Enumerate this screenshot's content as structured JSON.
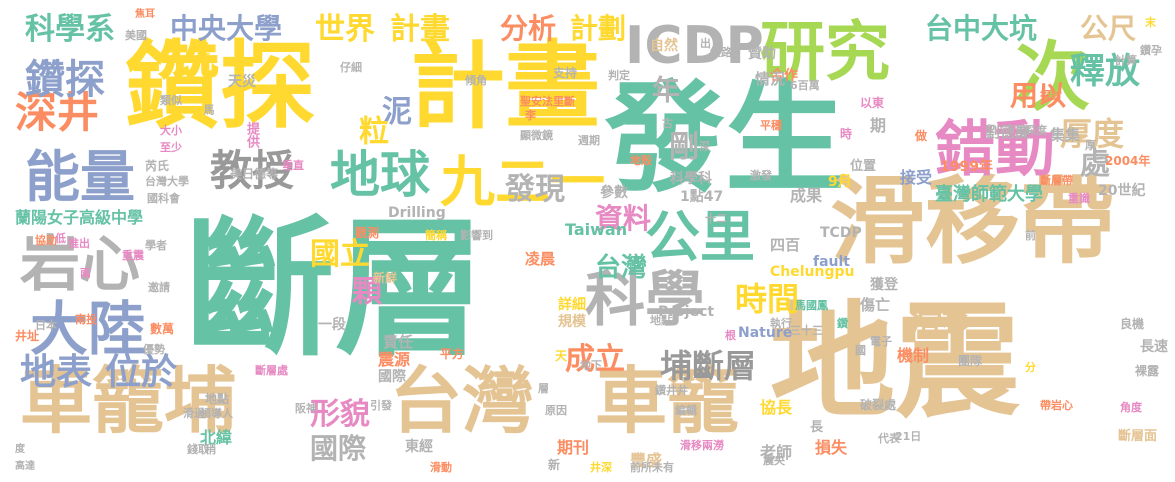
{
  "palette": {
    "teal": "#66c2a5",
    "orange": "#fc8d62",
    "blue": "#8da0cb",
    "pink": "#e78ac3",
    "green": "#a6d854",
    "yellow": "#ffd92f",
    "tan": "#e5c494",
    "gray": "#b3b3b3",
    "dark_gray": "#999999",
    "slate": "#7a8aa6"
  },
  "words": [
    {
      "text": "斷層",
      "color": "#66c2a5"
    },
    {
      "text": "地震",
      "color": "#e5c494"
    },
    {
      "text": "發生",
      "color": "#66c2a5"
    },
    {
      "text": "計畫",
      "color": "#ffd92f"
    },
    {
      "text": "鑽探",
      "color": "#ffd92f"
    },
    {
      "text": "滑移帶",
      "color": "#e5c494"
    },
    {
      "text": "車籠埔",
      "color": "#e5c494"
    },
    {
      "text": "台灣",
      "color": "#e5c494"
    },
    {
      "text": "車籠",
      "color": "#e5c494"
    },
    {
      "text": "研究",
      "color": "#a6d854"
    },
    {
      "text": "次",
      "color": "#a6d854"
    },
    {
      "text": "錯動",
      "color": "#e78ac3"
    },
    {
      "text": "科學",
      "color": "#b3b3b3"
    },
    {
      "text": "岩心",
      "color": "#b3b3b3"
    },
    {
      "text": "大陸",
      "color": "#8da0cb"
    },
    {
      "text": "能量",
      "color": "#8da0cb"
    },
    {
      "text": "公里",
      "color": "#66c2a5"
    },
    {
      "text": "九二一",
      "color": "#ffd92f"
    },
    {
      "text": "地球",
      "color": "#66c2a5"
    },
    {
      "text": "教授",
      "color": "#999999"
    },
    {
      "text": "ICDP",
      "color": "#b3b3b3"
    },
    {
      "text": "深井",
      "color": "#fc8d62"
    },
    {
      "text": "鑽探",
      "color": "#8da0cb"
    },
    {
      "text": "科學系",
      "color": "#66c2a5"
    },
    {
      "text": "中央大學",
      "color": "#8da0cb"
    },
    {
      "text": "世界",
      "color": "#ffd92f"
    },
    {
      "text": "計畫",
      "color": "#ffd92f"
    },
    {
      "text": "分析",
      "color": "#fc8d62"
    },
    {
      "text": "計劃",
      "color": "#ffd92f"
    },
    {
      "text": "台中大坑",
      "color": "#66c2a5"
    },
    {
      "text": "公尺",
      "color": "#e5c494"
    },
    {
      "text": "釋放",
      "color": "#66c2a5"
    },
    {
      "text": "用以",
      "color": "#fc8d62"
    },
    {
      "text": "厚度",
      "color": "#e5c494"
    },
    {
      "text": "處",
      "color": "#b3b3b3"
    },
    {
      "text": "埔斷層",
      "color": "#999999"
    },
    {
      "text": "時間",
      "color": "#ffd92f"
    },
    {
      "text": "滑移",
      "color": "#e5c494"
    },
    {
      "text": "成立",
      "color": "#fc8d62"
    },
    {
      "text": "台灣",
      "color": "#66c2a5"
    },
    {
      "text": "國立",
      "color": "#ffd92f"
    },
    {
      "text": "地表",
      "color": "#8da0cb"
    },
    {
      "text": "位於",
      "color": "#8da0cb"
    },
    {
      "text": "形貌",
      "color": "#e78ac3"
    },
    {
      "text": "國際",
      "color": "#b3b3b3"
    },
    {
      "text": "發現",
      "color": "#b3b3b3"
    },
    {
      "text": "資料",
      "color": "#e78ac3"
    },
    {
      "text": "泥",
      "color": "#8da0cb"
    },
    {
      "text": "粒",
      "color": "#ffd92f"
    },
    {
      "text": "剛",
      "color": "#b3b3b3"
    },
    {
      "text": "顆",
      "color": "#e78ac3"
    },
    {
      "text": "年",
      "color": "#b3b3b3"
    },
    {
      "text": "1點47",
      "color": "#b3b3b3"
    },
    {
      "text": "科學科",
      "color": "#b3b3b3"
    },
    {
      "text": "臺灣師範大學",
      "color": "#66c2a5"
    },
    {
      "text": "蘭陽女子高級中學",
      "color": "#66c2a5"
    },
    {
      "text": "劉德慶",
      "color": "#b3b3b3"
    },
    {
      "text": "1999年",
      "color": "#fc8d62"
    },
    {
      "text": "接受",
      "color": "#8da0cb"
    },
    {
      "text": "成果",
      "color": "#b3b3b3"
    },
    {
      "text": "9月",
      "color": "#ffd92f"
    },
    {
      "text": "20世紀",
      "color": "#b3b3b3"
    },
    {
      "text": "獲登",
      "color": "#b3b3b3"
    },
    {
      "text": "機制",
      "color": "#fc8d62"
    },
    {
      "text": "傷亡",
      "color": "#b3b3b3"
    },
    {
      "text": "老師",
      "color": "#b3b3b3"
    },
    {
      "text": "損失",
      "color": "#fc8d62"
    },
    {
      "text": "協長",
      "color": "#ffd92f"
    },
    {
      "text": "豐盛",
      "color": "#e5c494"
    },
    {
      "text": "期刊",
      "color": "#fc8d62"
    },
    {
      "text": "東經",
      "color": "#b3b3b3"
    },
    {
      "text": "責任",
      "color": "#b3b3b3"
    },
    {
      "text": "震源",
      "color": "#fc8d62"
    },
    {
      "text": "國際",
      "color": "#b3b3b3"
    },
    {
      "text": "北緯",
      "color": "#66c2a5"
    },
    {
      "text": "Drilling",
      "color": "#b3b3b3"
    },
    {
      "text": "Taiwan",
      "color": "#66c2a5"
    },
    {
      "text": "TCDP",
      "color": "#b3b3b3"
    },
    {
      "text": "Chelungpu",
      "color": "#ffd92f"
    },
    {
      "text": "fault",
      "color": "#8da0cb"
    },
    {
      "text": "Nature",
      "color": "#8da0cb"
    },
    {
      "text": "Project",
      "color": "#b3b3b3"
    },
    {
      "text": "凌晨",
      "color": "#fc8d62"
    },
    {
      "text": "詳細",
      "color": "#ffd92f"
    },
    {
      "text": "規模",
      "color": "#e5c494"
    },
    {
      "text": "天災",
      "color": "#b3b3b3"
    },
    {
      "text": "自然",
      "color": "#e5c494"
    },
    {
      "text": "贊助",
      "color": "#b3b3b3"
    },
    {
      "text": "合作",
      "color": "#fc8d62"
    },
    {
      "text": "美國",
      "color": "#b3b3b3"
    },
    {
      "text": "逆",
      "color": "#ffd92f"
    },
    {
      "text": "馬",
      "color": "#b3b3b3"
    },
    {
      "text": "類似",
      "color": "#b3b3b3"
    },
    {
      "text": "大小",
      "color": "#e78ac3"
    },
    {
      "text": "提供",
      "color": "#e78ac3"
    },
    {
      "text": "至少",
      "color": "#e78ac3"
    },
    {
      "text": "芮氏",
      "color": "#b3b3b3"
    },
    {
      "text": "台灣大學",
      "color": "#b3b3b3"
    },
    {
      "text": "國科會",
      "color": "#b3b3b3"
    },
    {
      "text": "美日德等",
      "color": "#b3b3b3"
    },
    {
      "text": "支持",
      "color": "#b3b3b3"
    },
    {
      "text": "地點",
      "color": "#b3b3b3"
    },
    {
      "text": "觀測",
      "color": "#fc8d62"
    },
    {
      "text": "簡稱",
      "color": "#ffd92f"
    },
    {
      "text": "影響到",
      "color": "#b3b3b3"
    },
    {
      "text": "十二",
      "color": "#b3b3b3"
    },
    {
      "text": "四百",
      "color": "#b3b3b3"
    },
    {
      "text": "馬國鳳",
      "color": "#66c2a5"
    },
    {
      "text": "執行",
      "color": "#b3b3b3"
    },
    {
      "text": "參數",
      "color": "#b3b3b3"
    },
    {
      "text": "地殼",
      "color": "#fc8d62"
    },
    {
      "text": "2004年",
      "color": "#fc8d62"
    },
    {
      "text": "集集",
      "color": "#b3b3b3"
    },
    {
      "text": "深度",
      "color": "#b3b3b3"
    },
    {
      "text": "位置",
      "color": "#b3b3b3"
    },
    {
      "text": "斷層帶",
      "color": "#fc8d62"
    },
    {
      "text": "重識",
      "color": "#e78ac3"
    },
    {
      "text": "以東",
      "color": "#e78ac3"
    },
    {
      "text": "期",
      "color": "#b3b3b3"
    },
    {
      "text": "做",
      "color": "#fc8d62"
    },
    {
      "text": "時",
      "color": "#e78ac3"
    },
    {
      "text": "鑽",
      "color": "#66c2a5"
    },
    {
      "text": "良機",
      "color": "#b3b3b3"
    },
    {
      "text": "長速",
      "color": "#b3b3b3"
    },
    {
      "text": "裸露",
      "color": "#b3b3b3"
    },
    {
      "text": "角度",
      "color": "#e78ac3"
    },
    {
      "text": "斷層面",
      "color": "#e5c494"
    },
    {
      "text": "21日",
      "color": "#b3b3b3"
    },
    {
      "text": "代表",
      "color": "#b3b3b3"
    },
    {
      "text": "長",
      "color": "#b3b3b3"
    },
    {
      "text": "震央",
      "color": "#b3b3b3"
    },
    {
      "text": "井深",
      "color": "#ffd92f"
    },
    {
      "text": "前所未有",
      "color": "#b3b3b3"
    },
    {
      "text": "滑移兩澇",
      "color": "#e78ac3"
    },
    {
      "text": "鑽井井",
      "color": "#b3b3b3"
    },
    {
      "text": "地下",
      "color": "#b3b3b3"
    },
    {
      "text": "原因",
      "color": "#b3b3b3"
    },
    {
      "text": "編輯",
      "color": "#b3b3b3"
    },
    {
      "text": "破裂處",
      "color": "#b3b3b3"
    },
    {
      "text": "帶岩心",
      "color": "#fc8d62"
    },
    {
      "text": "滑動",
      "color": "#fc8d62"
    },
    {
      "text": "層",
      "color": "#b3b3b3"
    },
    {
      "text": "平方",
      "color": "#fc8d62"
    },
    {
      "text": "天",
      "color": "#ffd92f"
    },
    {
      "text": "電子",
      "color": "#b3b3b3"
    },
    {
      "text": "團隊",
      "color": "#b3b3b3"
    },
    {
      "text": "分",
      "color": "#ffd92f"
    },
    {
      "text": "地點",
      "color": "#b3b3b3"
    },
    {
      "text": "領導人",
      "color": "#b3b3b3"
    },
    {
      "text": "滑過",
      "color": "#b3b3b3"
    },
    {
      "text": "數萬",
      "color": "#fc8d62"
    },
    {
      "text": "優勢",
      "color": "#b3b3b3"
    },
    {
      "text": "井址",
      "color": "#fc8d62"
    },
    {
      "text": "南投",
      "color": "#fc8d62"
    },
    {
      "text": "日本",
      "color": "#b3b3b3"
    },
    {
      "text": "邀請",
      "color": "#b3b3b3"
    },
    {
      "text": "重震",
      "color": "#e78ac3"
    },
    {
      "text": "學者",
      "color": "#b3b3b3"
    },
    {
      "text": "推出",
      "color": "#e78ac3"
    },
    {
      "text": "協助",
      "color": "#fc8d62"
    },
    {
      "text": "低",
      "color": "#e78ac3"
    },
    {
      "text": "兩",
      "color": "#e78ac3"
    },
    {
      "text": "度",
      "color": "#b3b3b3"
    },
    {
      "text": "高達",
      "color": "#b3b3b3"
    },
    {
      "text": "斷層處",
      "color": "#e78ac3"
    },
    {
      "text": "新鮮",
      "color": "#e5c494"
    },
    {
      "text": "一段",
      "color": "#b3b3b3"
    },
    {
      "text": "稍",
      "color": "#b3b3b3"
    },
    {
      "text": "錢取",
      "color": "#b3b3b3"
    },
    {
      "text": "阪神",
      "color": "#b3b3b3"
    },
    {
      "text": "引發",
      "color": "#b3b3b3"
    },
    {
      "text": "新",
      "color": "#b3b3b3"
    },
    {
      "text": "末",
      "color": "#ffd92f"
    },
    {
      "text": "鑽孕",
      "color": "#b3b3b3"
    },
    {
      "text": "計算",
      "color": "#b3b3b3"
    },
    {
      "text": "6百萬",
      "color": "#b3b3b3"
    },
    {
      "text": "平穩",
      "color": "#fc8d62"
    },
    {
      "text": "判定",
      "color": "#b3b3b3"
    },
    {
      "text": "仔細",
      "color": "#b3b3b3"
    },
    {
      "text": "傾角",
      "color": "#b3b3b3"
    },
    {
      "text": "出",
      "color": "#b3b3b3"
    },
    {
      "text": "紋路",
      "color": "#b3b3b3"
    },
    {
      "text": "情況",
      "color": "#b3b3b3"
    },
    {
      "text": "李",
      "color": "#fc8d62"
    },
    {
      "text": "聖安法里斷",
      "color": "#fc8d62"
    },
    {
      "text": "顯微鏡",
      "color": "#b3b3b3"
    },
    {
      "text": "激發",
      "color": "#b3b3b3"
    },
    {
      "text": "週期",
      "color": "#b3b3b3"
    },
    {
      "text": "焦耳",
      "color": "#fc8d62"
    },
    {
      "text": "垂直",
      "color": "#e78ac3"
    },
    {
      "text": "三十三",
      "color": "#b3b3b3"
    },
    {
      "text": "根",
      "color": "#e78ac3"
    },
    {
      "text": "國",
      "color": "#b3b3b3"
    },
    {
      "text": "厚",
      "color": "#b3b3b3"
    },
    {
      "text": "前",
      "color": "#b3b3b3"
    },
    {
      "text": "探討",
      "color": "#fc8d62"
    },
    {
      "text": "古",
      "color": "#b3b3b3"
    },
    {
      "text": "深",
      "color": "#b3b3b3"
    }
  ]
}
